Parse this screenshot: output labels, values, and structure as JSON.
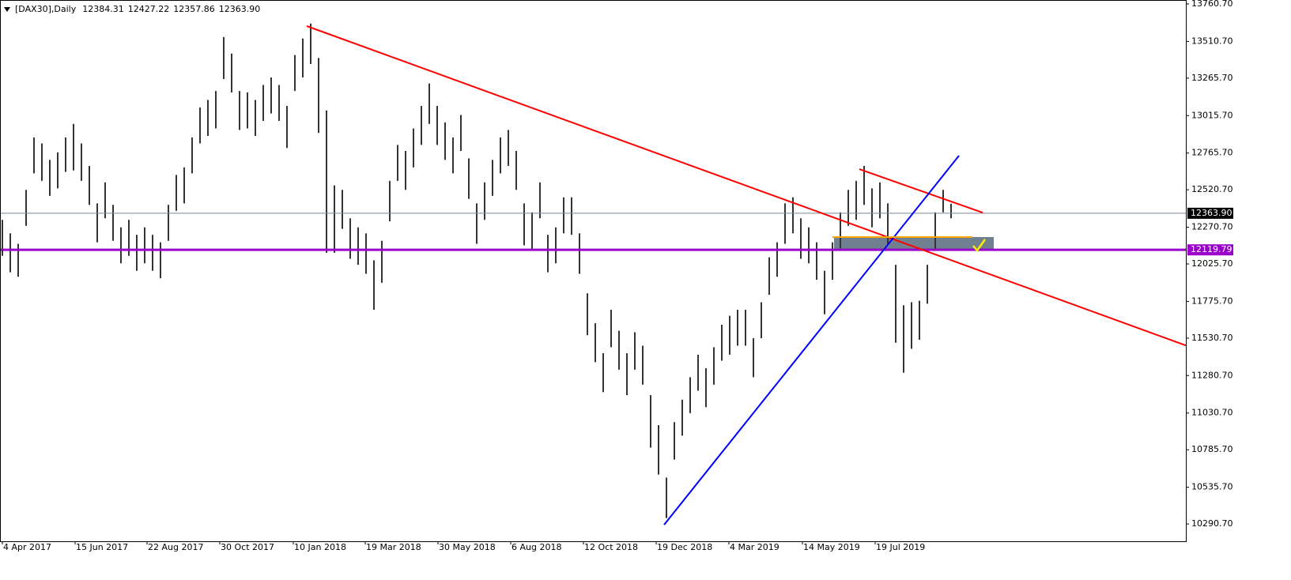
{
  "chart_data": {
    "type": "ohlc",
    "title": "[DAX30],Daily",
    "quote": [
      12384.31,
      12427.22,
      12357.86,
      {
        "value": 12363.9,
        "label": "12363.90"
      }
    ],
    "bar_color": "#333333",
    "high": [
      12320,
      12230,
      12160,
      12520,
      12870,
      12830,
      12720,
      12770,
      12870,
      12960,
      12830,
      12680,
      12430,
      12570,
      12420,
      12270,
      12320,
      12220,
      12270,
      12220,
      12170,
      12420,
      12620,
      12670,
      12870,
      13070,
      13120,
      13180,
      13540,
      13430,
      13180,
      13170,
      13120,
      13220,
      13270,
      13220,
      13080,
      13420,
      13530,
      13630,
      13400,
      13050,
      12550,
      12520,
      12330,
      12270,
      12230,
      12050,
      12180,
      12580,
      12820,
      12780,
      12930,
      13080,
      13230,
      13080,
      12970,
      12870,
      13020,
      12730,
      12430,
      12570,
      12720,
      12870,
      12920,
      12780,
      12430,
      12370,
      12570,
      12220,
      12270,
      12470,
      12470,
      12230,
      11830,
      11630,
      11430,
      11720,
      11580,
      11430,
      11570,
      11480,
      11150,
      10950,
      10600,
      10970,
      11120,
      11270,
      11420,
      11330,
      11470,
      11620,
      11680,
      11720,
      11720,
      11530,
      11770,
      12070,
      12170,
      12430,
      12470,
      12330,
      12270,
      12170,
      11980,
      12170,
      12370,
      12520,
      12580,
      12680,
      12530,
      12570,
      12430,
      12020,
      11750,
      11770,
      11780,
      12020,
      12370,
      12520,
      12427
    ],
    "low": [
      12080,
      11970,
      11940,
      12280,
      12630,
      12580,
      12480,
      12530,
      12640,
      12650,
      12580,
      12420,
      12170,
      12330,
      12180,
      12030,
      12080,
      11980,
      12030,
      11980,
      11930,
      12180,
      12380,
      12430,
      12630,
      12830,
      12880,
      12930,
      13260,
      13170,
      12920,
      12930,
      12880,
      12980,
      13030,
      12980,
      12800,
      13180,
      13270,
      13360,
      12900,
      12100,
      12100,
      12260,
      12060,
      12020,
      11960,
      11720,
      11900,
      12310,
      12580,
      12520,
      12670,
      12820,
      12960,
      12820,
      12720,
      12630,
      12780,
      12460,
      12160,
      12320,
      12480,
      12630,
      12680,
      12520,
      12150,
      12120,
      12330,
      11970,
      12030,
      12230,
      12220,
      11960,
      11550,
      11370,
      11170,
      11470,
      11320,
      11150,
      11320,
      11220,
      10800,
      10620,
      10330,
      10720,
      10880,
      11030,
      11180,
      11070,
      11220,
      11380,
      11420,
      11480,
      11480,
      11270,
      11530,
      11820,
      11940,
      12160,
      12230,
      12060,
      12030,
      11920,
      11690,
      11920,
      12130,
      12280,
      12320,
      12420,
      12270,
      12330,
      12160,
      11500,
      11300,
      11460,
      11520,
      11760,
      12120,
      12370,
      12330
    ],
    "xlim": [
      -0.3,
      149.7
    ],
    "ylim": [
      10175,
      13787
    ],
    "xticks": [
      {
        "value": 0,
        "label": "4 Apr 2017"
      },
      {
        "value": 9.2,
        "label": "15 Jun 2017"
      },
      {
        "value": 18.3,
        "label": "22 Aug 2017"
      },
      {
        "value": 27.5,
        "label": "30 Oct 2017"
      },
      {
        "value": 36.8,
        "label": "10 Jan 2018"
      },
      {
        "value": 45.9,
        "label": "19 Mar 2018"
      },
      {
        "value": 55.1,
        "label": "30 May 2018"
      },
      {
        "value": 64.3,
        "label": "6 Aug 2018"
      },
      {
        "value": 73.5,
        "label": "12 Oct 2018"
      },
      {
        "value": 82.7,
        "label": "19 Dec 2018"
      },
      {
        "value": 91.9,
        "label": "4 Mar 2019"
      },
      {
        "value": 101.2,
        "label": "14 May 2019"
      },
      {
        "value": 110.4,
        "label": "19 Jul 2019"
      }
    ],
    "yticks": [
      {
        "value": 13760.7,
        "label": "13760.70"
      },
      {
        "value": 13510.7,
        "label": "13510.70"
      },
      {
        "value": 13265.7,
        "label": "13265.70"
      },
      {
        "value": 13015.7,
        "label": "13015.70"
      },
      {
        "value": 12765.7,
        "label": "12765.70"
      },
      {
        "value": 12520.7,
        "label": "12520.70"
      },
      {
        "value": 12270.7,
        "label": "12270.70"
      },
      {
        "value": 12025.7,
        "label": "12025.70"
      },
      {
        "value": 11775.7,
        "label": "11775.70"
      },
      {
        "value": 11530.7,
        "label": "11530.70"
      },
      {
        "value": 11280.7,
        "label": "11280.70"
      },
      {
        "value": 11030.7,
        "label": "11030.70"
      },
      {
        "value": 10785.7,
        "label": "10785.70"
      },
      {
        "value": 10535.7,
        "label": "10535.70"
      },
      {
        "value": 10290.7,
        "label": "10290.70"
      }
    ],
    "price_line": {
      "value": 12363.9,
      "label": "12363.90",
      "color": "#778899"
    },
    "level": {
      "value": 12119.79,
      "label": "12119.79",
      "color": "#9900cc"
    },
    "zone": {
      "x": [
        105.2,
        125.4
      ],
      "y": [
        12115,
        12205
      ],
      "color": "#708090"
    },
    "trendlines": [
      {
        "color": "#ff0000",
        "x": [
          38.5,
          149.7
        ],
        "y": [
          13613,
          11482
        ]
      },
      {
        "color": "#ff0000",
        "x": [
          108.4,
          124
        ],
        "y": [
          12658,
          12368
        ]
      },
      {
        "color": "#0000ff",
        "x": [
          83.7,
          121
        ],
        "y": [
          10285,
          12748
        ]
      },
      {
        "color": "#ffa500",
        "x": [
          105,
          122.7
        ],
        "y": [
          12205,
          12205
        ]
      }
    ]
  }
}
